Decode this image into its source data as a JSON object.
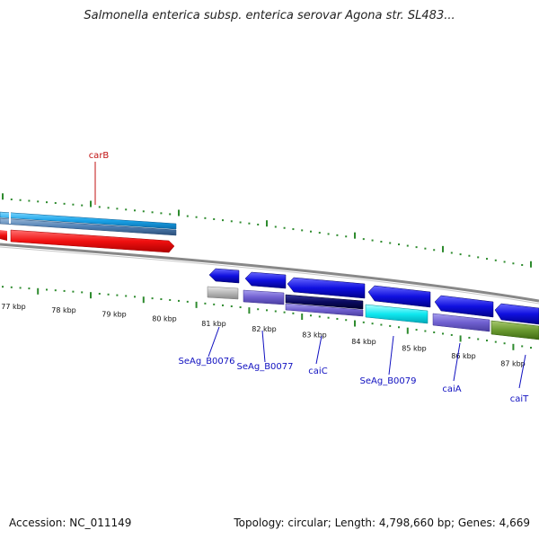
{
  "title": "Salmonella enterica subsp. enterica serovar Agona str. SL483...",
  "footer": {
    "accession": "Accession: NC_011149",
    "topology": "Topology: circular; Length: 4,798,660 bp; Genes: 4,669"
  },
  "colors": {
    "tick": "#2e8b2e",
    "label_line": "#1010c0",
    "label_text": "#1010c0",
    "carB_label": "#c01010",
    "backbone": "#888888"
  },
  "outer_kbp_ticks": [],
  "inner_kbp_labels": [
    "77 kbp",
    "78 kbp",
    "79 kbp",
    "80 kbp",
    "81 kbp",
    "82 kbp",
    "83 kbp",
    "84 kbp",
    "85 kbp",
    "86 kbp",
    "87 kbp"
  ],
  "genes": [
    {
      "name": "carB",
      "color_top": "#1aa3e8",
      "color_bottom": "#4f7fb3",
      "label_color": "#c01010"
    },
    {
      "name": "SeAg_B0076",
      "color": "#1010e0"
    },
    {
      "name": "SeAg_B0077",
      "color": "#1010e0"
    },
    {
      "name": "caiC",
      "color": "#1010e0"
    },
    {
      "name": "SeAg_B0079",
      "color": "#1010e0"
    },
    {
      "name": "caiA",
      "color": "#1010e0"
    },
    {
      "name": "caiT",
      "color": "#1010e0"
    }
  ]
}
